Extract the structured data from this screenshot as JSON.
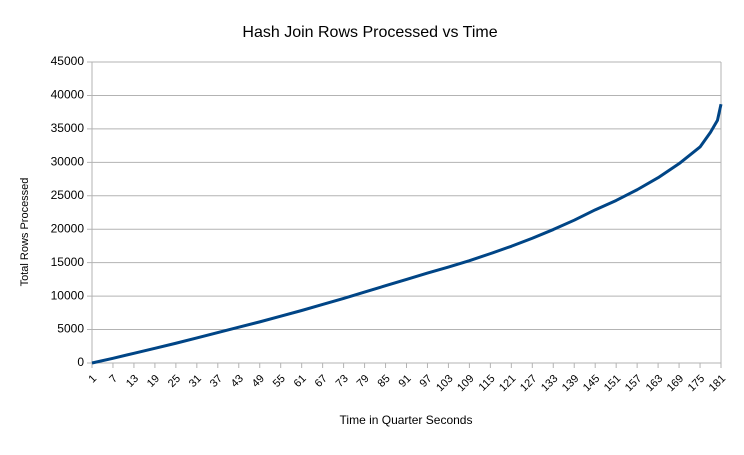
{
  "chart_data": {
    "type": "line",
    "title": "Hash Join Rows Processed vs Time",
    "x_label": "Time in Quarter Seconds",
    "y_label": "Total Rows Processed",
    "x": [
      1,
      7,
      13,
      19,
      25,
      31,
      37,
      43,
      49,
      55,
      61,
      67,
      73,
      79,
      85,
      91,
      97,
      103,
      109,
      115,
      121,
      127,
      133,
      139,
      145,
      151,
      157,
      163,
      169,
      175,
      178,
      180,
      181
    ],
    "series": [
      {
        "name": "Total Rows Processed",
        "color": "#004586",
        "values": [
          0,
          700,
          1450,
          2200,
          2950,
          3750,
          4550,
          5350,
          6150,
          7000,
          7850,
          8750,
          9650,
          10600,
          11550,
          12500,
          13450,
          14350,
          15300,
          16350,
          17450,
          18650,
          19950,
          21350,
          22900,
          24300,
          25900,
          27700,
          29800,
          32300,
          34500,
          36300,
          38700
        ]
      }
    ],
    "xlim": [
      1,
      181
    ],
    "xticks": [
      1,
      7,
      13,
      19,
      25,
      31,
      37,
      43,
      49,
      55,
      61,
      67,
      73,
      79,
      85,
      91,
      97,
      103,
      109,
      115,
      121,
      127,
      133,
      139,
      145,
      151,
      157,
      163,
      169,
      175,
      181
    ],
    "ylim": [
      0,
      45000
    ],
    "yticks": [
      0,
      5000,
      10000,
      15000,
      20000,
      25000,
      30000,
      35000,
      40000,
      45000
    ],
    "grid": true
  }
}
